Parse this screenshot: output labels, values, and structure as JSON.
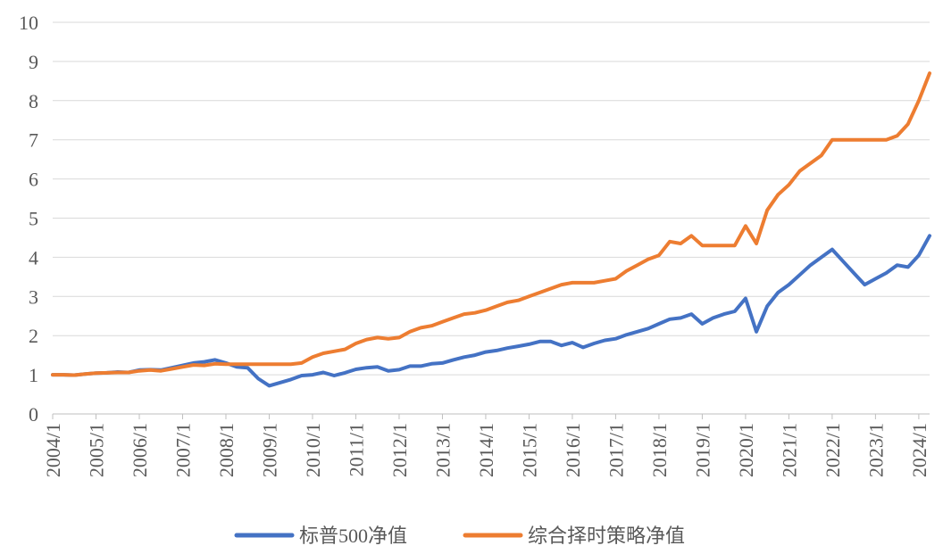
{
  "chart_data": {
    "type": "line",
    "categories": [
      "2004/1",
      null,
      null,
      null,
      "2005/1",
      null,
      null,
      null,
      "2006/1",
      null,
      null,
      null,
      "2007/1",
      null,
      null,
      null,
      "2008/1",
      null,
      null,
      null,
      "2009/1",
      null,
      null,
      null,
      "2010/1",
      null,
      null,
      null,
      "2011/1",
      null,
      null,
      null,
      "2012/1",
      null,
      null,
      null,
      "2013/1",
      null,
      null,
      null,
      "2014/1",
      null,
      null,
      null,
      "2015/1",
      null,
      null,
      null,
      "2016/1",
      null,
      null,
      null,
      "2017/1",
      null,
      null,
      null,
      "2018/1",
      null,
      null,
      null,
      "2019/1",
      null,
      null,
      null,
      "2020/1",
      null,
      null,
      null,
      "2021/1",
      null,
      null,
      null,
      "2022/1",
      null,
      null,
      null,
      "2023/1",
      null,
      null,
      null,
      "2024/1",
      null
    ],
    "series": [
      {
        "name": "标普500净值",
        "color": "#4472c4",
        "values": [
          1.0,
          1.0,
          0.99,
          1.02,
          1.04,
          1.05,
          1.07,
          1.06,
          1.12,
          1.13,
          1.12,
          1.18,
          1.24,
          1.3,
          1.33,
          1.38,
          1.3,
          1.2,
          1.18,
          0.9,
          0.72,
          0.8,
          0.88,
          0.98,
          1.0,
          1.06,
          0.98,
          1.05,
          1.14,
          1.18,
          1.2,
          1.1,
          1.13,
          1.22,
          1.22,
          1.28,
          1.3,
          1.38,
          1.45,
          1.5,
          1.58,
          1.62,
          1.68,
          1.73,
          1.78,
          1.85,
          1.85,
          1.75,
          1.82,
          1.7,
          1.8,
          1.88,
          1.92,
          2.02,
          2.1,
          2.18,
          2.3,
          2.42,
          2.45,
          2.55,
          2.3,
          2.45,
          2.55,
          2.62,
          2.95,
          2.1,
          2.75,
          3.1,
          3.3,
          3.55,
          3.8,
          4.0,
          4.2,
          3.9,
          3.6,
          3.3,
          3.45,
          3.6,
          3.8,
          3.75,
          4.05,
          4.55
        ]
      },
      {
        "name": "综合择时策略净值",
        "color": "#ed7d31",
        "values": [
          1.0,
          1.0,
          0.99,
          1.02,
          1.04,
          1.05,
          1.06,
          1.06,
          1.1,
          1.12,
          1.1,
          1.15,
          1.2,
          1.25,
          1.24,
          1.28,
          1.27,
          1.27,
          1.27,
          1.27,
          1.27,
          1.27,
          1.27,
          1.3,
          1.45,
          1.55,
          1.6,
          1.65,
          1.8,
          1.9,
          1.95,
          1.92,
          1.95,
          2.1,
          2.2,
          2.25,
          2.35,
          2.45,
          2.55,
          2.58,
          2.65,
          2.75,
          2.85,
          2.9,
          3.0,
          3.1,
          3.2,
          3.3,
          3.35,
          3.35,
          3.35,
          3.4,
          3.45,
          3.65,
          3.8,
          3.95,
          4.05,
          4.4,
          4.35,
          4.55,
          4.3,
          4.3,
          4.3,
          4.3,
          4.8,
          4.35,
          5.2,
          5.6,
          5.85,
          6.2,
          6.4,
          6.6,
          7.0,
          7.0,
          7.0,
          7.0,
          7.0,
          7.0,
          7.1,
          7.4,
          8.0,
          8.7
        ]
      }
    ],
    "ylim": [
      0,
      10
    ],
    "yticks": [
      0,
      1,
      2,
      3,
      4,
      5,
      6,
      7,
      8,
      9,
      10
    ],
    "grid": true,
    "legend": "bottom"
  }
}
